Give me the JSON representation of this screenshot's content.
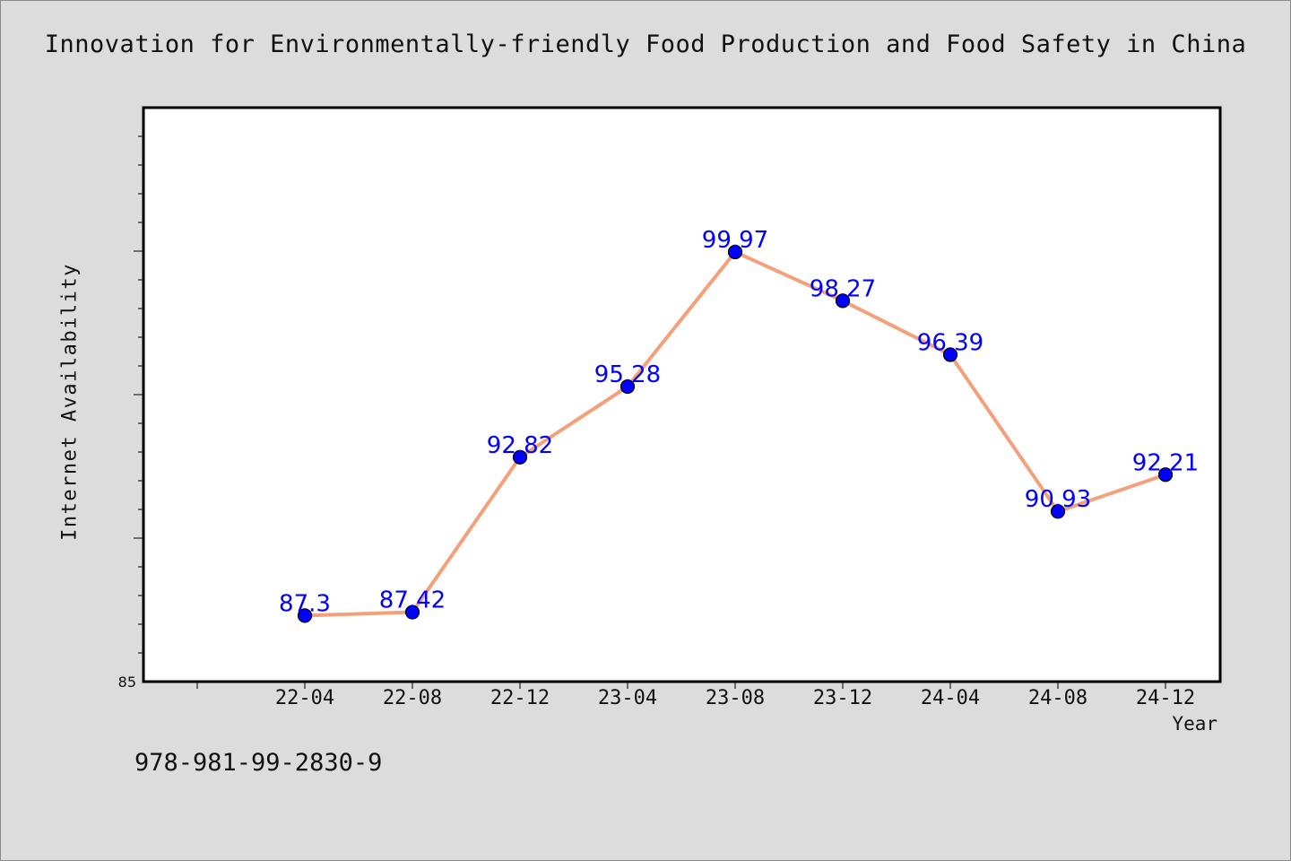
{
  "chart_data": {
    "type": "line",
    "title": "Innovation for Environmentally-friendly Food Production and Food Safety in China",
    "xlabel": "Year",
    "ylabel": "Internet Availability",
    "categories": [
      "22-04",
      "22-08",
      "22-12",
      "23-04",
      "23-08",
      "23-12",
      "24-04",
      "24-08",
      "24-12"
    ],
    "series": [
      {
        "values": [
          87.3,
          87.42,
          92.82,
          95.28,
          99.97,
          98.27,
          96.39,
          90.93,
          92.21
        ]
      }
    ],
    "data_labels": [
      "87.3",
      "87.42",
      "92.82",
      "95.28",
      "99.97",
      "98.27",
      "96.39",
      "90.93",
      "92.21"
    ],
    "ylim": [
      85,
      105
    ],
    "y_tick_labels": [
      "85"
    ],
    "grid": false,
    "colors": {
      "line": "#f4a07a",
      "marker": "#0000ff",
      "label": "#0000ff",
      "background": "#dcdcdc",
      "plot_background": "#ffffff"
    }
  },
  "footer": {
    "text": "978-981-99-2830-9"
  }
}
